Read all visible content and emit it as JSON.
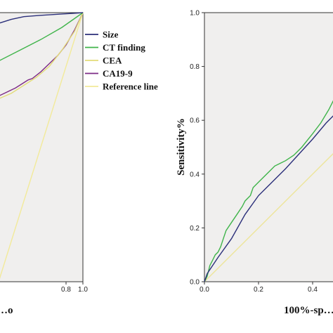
{
  "chart_data": [
    {
      "type": "line",
      "title": "",
      "xlabel": "…o",
      "ylabel": "",
      "xlim": [
        0,
        1
      ],
      "ylim": [
        0,
        1
      ],
      "x_ticks": [
        "0.8",
        "1.0"
      ],
      "legend": [
        {
          "name": "Size",
          "color": "#2b2f7a"
        },
        {
          "name": "CT finding",
          "color": "#3fb44a"
        },
        {
          "name": "CEA",
          "color": "#e3dc78"
        },
        {
          "name": "CA19-9",
          "color": "#7d2a86"
        },
        {
          "name": "Reference line",
          "color": "#f2ea9a"
        }
      ],
      "legend_placement": "right-outside",
      "series": [
        {
          "name": "Size",
          "color": "#2b2f7a",
          "points": [
            [
              0.0,
              0.96
            ],
            [
              0.15,
              0.975
            ],
            [
              0.3,
              0.985
            ],
            [
              0.5,
              0.99
            ],
            [
              0.75,
              0.995
            ],
            [
              0.88,
              0.997
            ],
            [
              1.0,
              1.0
            ]
          ]
        },
        {
          "name": "CT finding",
          "color": "#3fb44a",
          "points": [
            [
              0.0,
              0.82
            ],
            [
              0.25,
              0.86
            ],
            [
              0.5,
              0.9
            ],
            [
              0.75,
              0.945
            ],
            [
              1.0,
              1.0
            ]
          ]
        },
        {
          "name": "CEA",
          "color": "#e3dc78",
          "points": [
            [
              0.0,
              0.68
            ],
            [
              0.15,
              0.7
            ],
            [
              0.3,
              0.73
            ],
            [
              0.45,
              0.76
            ],
            [
              0.6,
              0.8
            ],
            [
              0.75,
              0.86
            ],
            [
              0.9,
              0.93
            ],
            [
              1.0,
              1.0
            ]
          ]
        },
        {
          "name": "CA19-9",
          "color": "#7d2a86",
          "points": [
            [
              0.0,
              0.69
            ],
            [
              0.1,
              0.705
            ],
            [
              0.2,
              0.72
            ],
            [
              0.3,
              0.74
            ],
            [
              0.35,
              0.75
            ],
            [
              0.4,
              0.755
            ],
            [
              0.5,
              0.78
            ],
            [
              0.6,
              0.81
            ],
            [
              0.7,
              0.84
            ],
            [
              0.8,
              0.88
            ],
            [
              0.9,
              0.935
            ],
            [
              1.0,
              1.0
            ]
          ]
        },
        {
          "name": "Reference line",
          "color": "#f2ea9a",
          "points": [
            [
              0.0,
              0.0
            ],
            [
              1.0,
              1.0
            ]
          ]
        }
      ]
    },
    {
      "type": "line",
      "title": "",
      "xlabel": "100%-sp…",
      "ylabel": "Sensitivity%",
      "xlim": [
        0,
        1
      ],
      "ylim": [
        0,
        1
      ],
      "x_ticks": [
        "0.0",
        "0.2",
        "0.4"
      ],
      "y_ticks": [
        "0.0",
        "0.2",
        "0.4",
        "0.6",
        "0.8",
        "1.0"
      ],
      "grid": false,
      "series": [
        {
          "name": "",
          "color": "#2b2f7a",
          "points": [
            [
              0.0,
              0.0
            ],
            [
              0.01,
              0.03
            ],
            [
              0.05,
              0.09
            ],
            [
              0.1,
              0.16
            ],
            [
              0.15,
              0.25
            ],
            [
              0.2,
              0.32
            ],
            [
              0.3,
              0.42
            ],
            [
              0.4,
              0.53
            ],
            [
              0.45,
              0.59
            ],
            [
              0.48,
              0.62
            ]
          ]
        },
        {
          "name": "",
          "color": "#3fb44a",
          "points": [
            [
              0.0,
              0.0
            ],
            [
              0.01,
              0.02
            ],
            [
              0.02,
              0.06
            ],
            [
              0.03,
              0.08
            ],
            [
              0.04,
              0.1
            ],
            [
              0.05,
              0.11
            ],
            [
              0.06,
              0.13
            ],
            [
              0.07,
              0.16
            ],
            [
              0.08,
              0.19
            ],
            [
              0.1,
              0.22
            ],
            [
              0.12,
              0.25
            ],
            [
              0.14,
              0.28
            ],
            [
              0.15,
              0.3
            ],
            [
              0.17,
              0.32
            ],
            [
              0.18,
              0.35
            ],
            [
              0.2,
              0.37
            ],
            [
              0.22,
              0.39
            ],
            [
              0.24,
              0.41
            ],
            [
              0.26,
              0.43
            ],
            [
              0.28,
              0.44
            ],
            [
              0.3,
              0.45
            ],
            [
              0.33,
              0.47
            ],
            [
              0.36,
              0.5
            ],
            [
              0.4,
              0.55
            ],
            [
              0.43,
              0.59
            ],
            [
              0.46,
              0.64
            ],
            [
              0.48,
              0.68
            ]
          ]
        },
        {
          "name": "",
          "color": "#ede59a",
          "points": [
            [
              0.0,
              0.0
            ],
            [
              0.48,
              0.48
            ]
          ]
        }
      ]
    }
  ]
}
